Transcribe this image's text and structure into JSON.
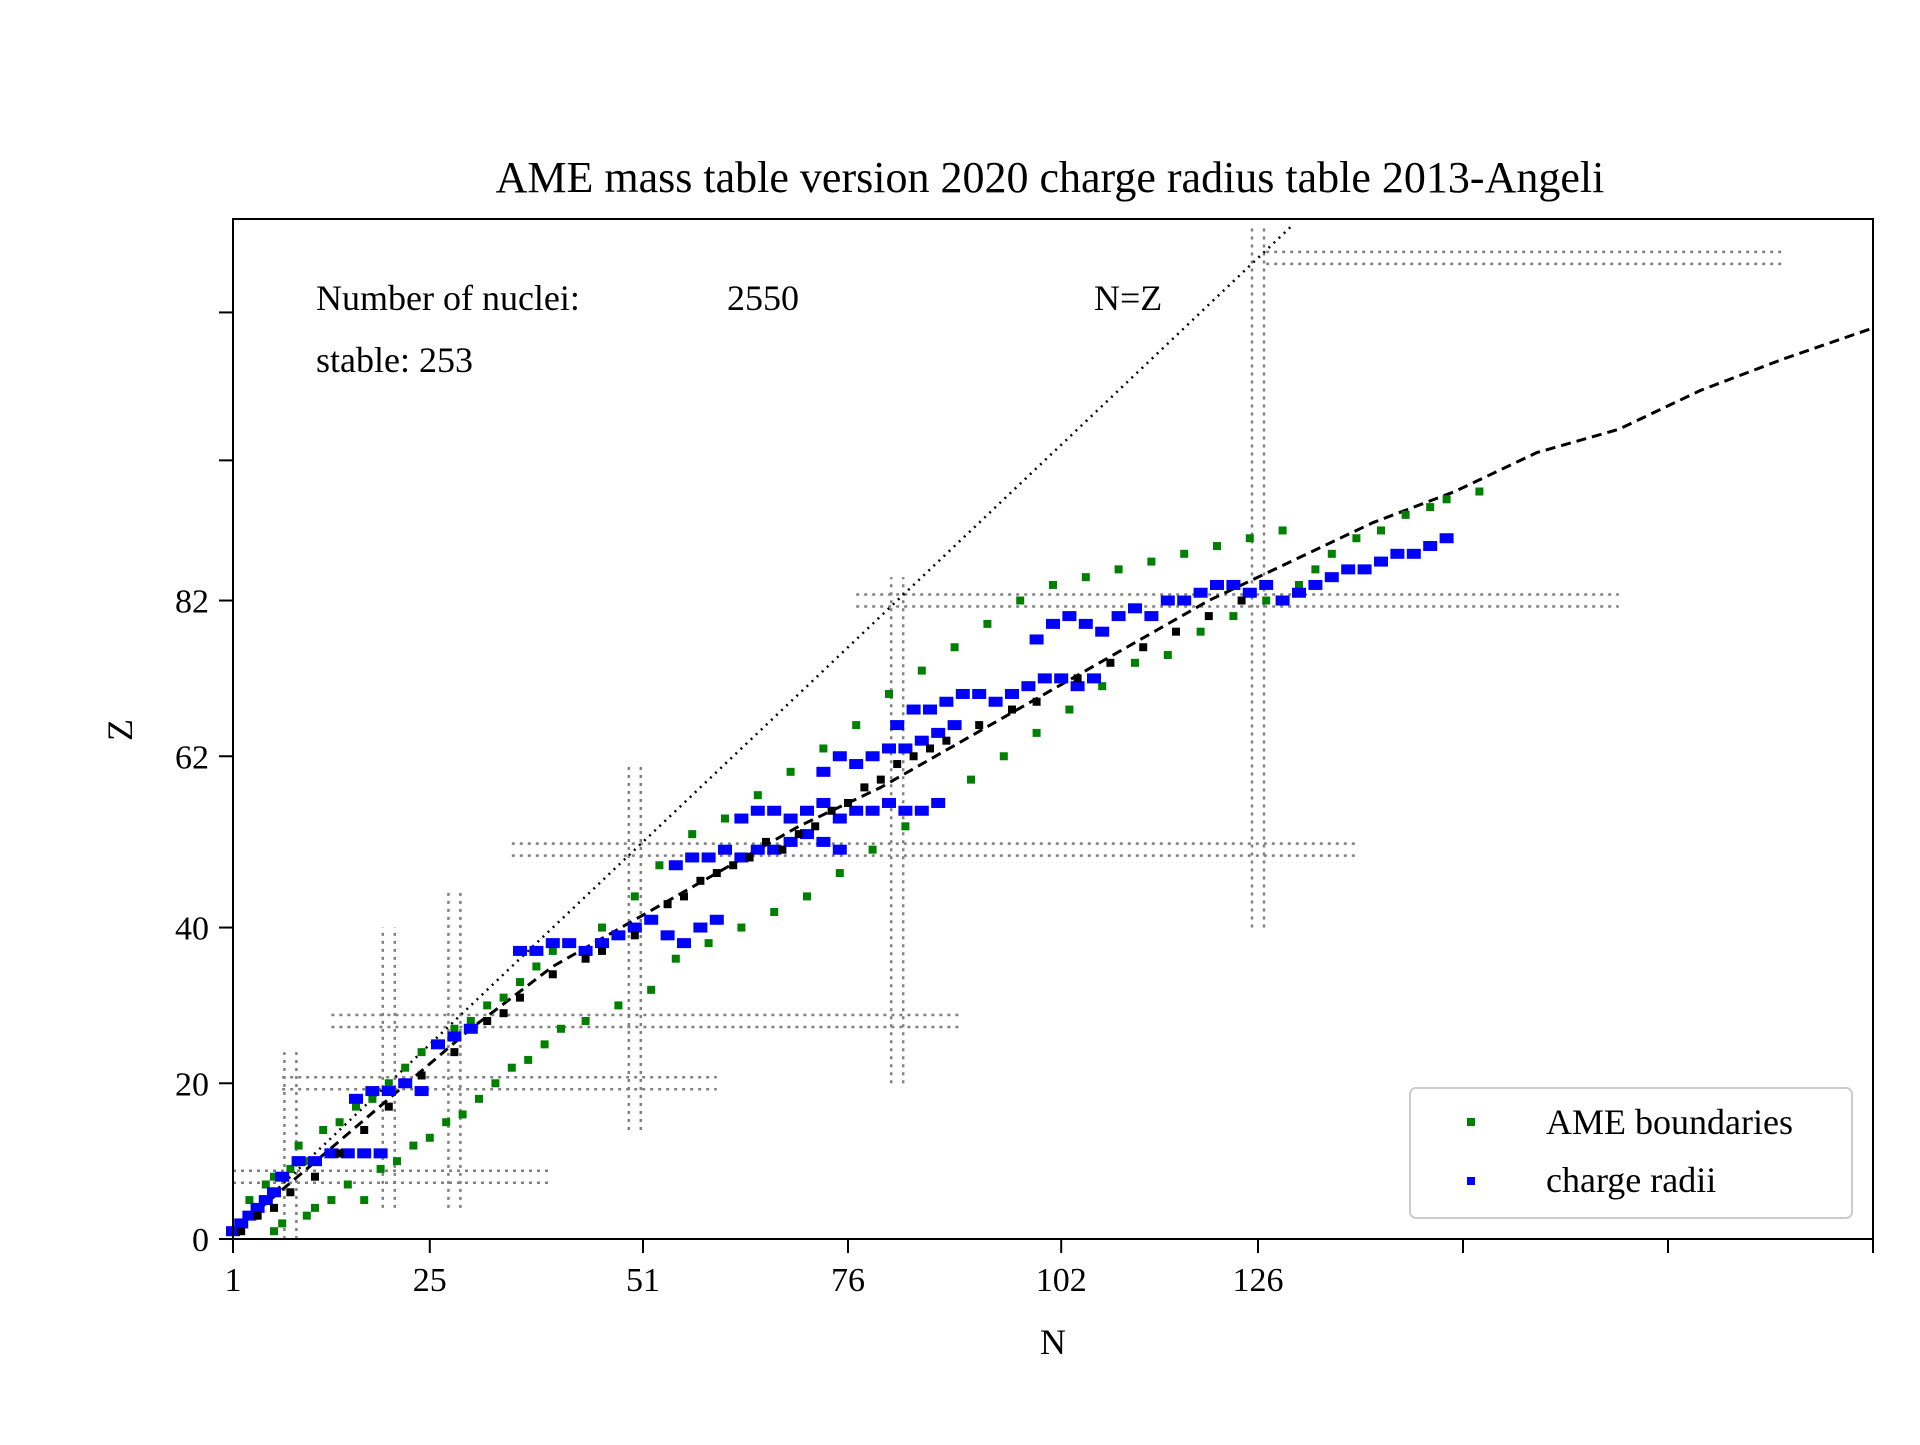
{
  "chart_data": {
    "type": "scatter",
    "title": "AME mass table version 2020 charge radius table 2013-Angeli",
    "xlabel": "N",
    "ylabel": "Z",
    "xlim": [
      1,
      201
    ],
    "ylim": [
      0,
      131
    ],
    "x_ticks": [
      1,
      25,
      51,
      76,
      102,
      126,
      151,
      176,
      201
    ],
    "x_tick_labels": [
      "1",
      "25",
      "51",
      "76",
      "102",
      "126",
      "",
      "",
      ""
    ],
    "y_ticks": [
      0,
      20,
      40,
      62,
      82,
      100,
      119
    ],
    "y_tick_labels": [
      "0",
      "20",
      "40",
      "62",
      "82",
      "",
      ""
    ],
    "grid": false,
    "legend_position": "lower-right",
    "annotations": {
      "nuclei_label": "Number of nuclei:",
      "nuclei_count": "2550",
      "stable": "stable: 253",
      "nz_label": "N=Z"
    },
    "series": [
      {
        "name": "AME boundaries",
        "color": "#008000",
        "marker": "square",
        "points": [
          [
            1,
            1
          ],
          [
            2,
            2
          ],
          [
            3,
            5
          ],
          [
            4,
            3
          ],
          [
            5,
            7
          ],
          [
            6,
            1
          ],
          [
            6,
            8
          ],
          [
            7,
            2
          ],
          [
            8,
            9
          ],
          [
            9,
            12
          ],
          [
            10,
            3
          ],
          [
            10,
            10
          ],
          [
            11,
            4
          ],
          [
            12,
            14
          ],
          [
            13,
            5
          ],
          [
            14,
            15
          ],
          [
            15,
            7
          ],
          [
            16,
            17
          ],
          [
            17,
            5
          ],
          [
            18,
            18
          ],
          [
            19,
            9
          ],
          [
            20,
            20
          ],
          [
            21,
            10
          ],
          [
            22,
            22
          ],
          [
            23,
            12
          ],
          [
            24,
            24
          ],
          [
            25,
            13
          ],
          [
            26,
            25
          ],
          [
            27,
            15
          ],
          [
            28,
            27
          ],
          [
            29,
            16
          ],
          [
            30,
            28
          ],
          [
            31,
            18
          ],
          [
            32,
            30
          ],
          [
            33,
            20
          ],
          [
            34,
            31
          ],
          [
            35,
            22
          ],
          [
            36,
            33
          ],
          [
            37,
            23
          ],
          [
            38,
            35
          ],
          [
            39,
            25
          ],
          [
            40,
            37
          ],
          [
            41,
            27
          ],
          [
            42,
            38
          ],
          [
            44,
            28
          ],
          [
            46,
            40
          ],
          [
            48,
            30
          ],
          [
            50,
            44
          ],
          [
            52,
            32
          ],
          [
            53,
            48
          ],
          [
            55,
            36
          ],
          [
            57,
            52
          ],
          [
            59,
            38
          ],
          [
            61,
            54
          ],
          [
            63,
            40
          ],
          [
            65,
            57
          ],
          [
            67,
            42
          ],
          [
            69,
            60
          ],
          [
            71,
            44
          ],
          [
            73,
            63
          ],
          [
            75,
            47
          ],
          [
            77,
            66
          ],
          [
            79,
            50
          ],
          [
            81,
            70
          ],
          [
            83,
            53
          ],
          [
            85,
            73
          ],
          [
            87,
            56
          ],
          [
            89,
            76
          ],
          [
            91,
            59
          ],
          [
            93,
            79
          ],
          [
            95,
            62
          ],
          [
            97,
            82
          ],
          [
            99,
            65
          ],
          [
            101,
            84
          ],
          [
            103,
            68
          ],
          [
            105,
            85
          ],
          [
            107,
            71
          ],
          [
            109,
            86
          ],
          [
            111,
            74
          ],
          [
            113,
            87
          ],
          [
            115,
            75
          ],
          [
            117,
            88
          ],
          [
            119,
            78
          ],
          [
            121,
            89
          ],
          [
            123,
            80
          ],
          [
            125,
            90
          ],
          [
            127,
            82
          ],
          [
            129,
            91
          ],
          [
            131,
            84
          ],
          [
            133,
            86
          ],
          [
            135,
            88
          ],
          [
            138,
            90
          ],
          [
            141,
            91
          ],
          [
            144,
            93
          ],
          [
            147,
            94
          ],
          [
            149,
            95
          ],
          [
            153,
            96
          ]
        ]
      },
      {
        "name": "charge radii",
        "color": "#0000ff",
        "marker": "square",
        "points": [
          [
            1,
            1
          ],
          [
            2,
            2
          ],
          [
            3,
            3
          ],
          [
            4,
            4
          ],
          [
            5,
            5
          ],
          [
            6,
            6
          ],
          [
            7,
            8
          ],
          [
            9,
            10
          ],
          [
            11,
            10
          ],
          [
            13,
            11
          ],
          [
            15,
            11
          ],
          [
            17,
            11
          ],
          [
            19,
            11
          ],
          [
            16,
            18
          ],
          [
            18,
            19
          ],
          [
            20,
            19
          ],
          [
            22,
            20
          ],
          [
            24,
            19
          ],
          [
            26,
            25
          ],
          [
            28,
            26
          ],
          [
            30,
            27
          ],
          [
            36,
            37
          ],
          [
            38,
            37
          ],
          [
            40,
            38
          ],
          [
            42,
            38
          ],
          [
            44,
            37
          ],
          [
            46,
            38
          ],
          [
            48,
            39
          ],
          [
            50,
            40
          ],
          [
            52,
            41
          ],
          [
            54,
            39
          ],
          [
            56,
            38
          ],
          [
            58,
            40
          ],
          [
            60,
            41
          ],
          [
            55,
            48
          ],
          [
            57,
            49
          ],
          [
            59,
            49
          ],
          [
            61,
            50
          ],
          [
            63,
            49
          ],
          [
            65,
            50
          ],
          [
            67,
            50
          ],
          [
            69,
            51
          ],
          [
            71,
            52
          ],
          [
            73,
            51
          ],
          [
            75,
            50
          ],
          [
            63,
            54
          ],
          [
            65,
            55
          ],
          [
            67,
            55
          ],
          [
            69,
            54
          ],
          [
            71,
            55
          ],
          [
            73,
            56
          ],
          [
            75,
            54
          ],
          [
            77,
            55
          ],
          [
            79,
            55
          ],
          [
            81,
            56
          ],
          [
            83,
            55
          ],
          [
            85,
            55
          ],
          [
            87,
            56
          ],
          [
            73,
            60
          ],
          [
            75,
            62
          ],
          [
            77,
            61
          ],
          [
            79,
            62
          ],
          [
            81,
            63
          ],
          [
            83,
            63
          ],
          [
            85,
            64
          ],
          [
            87,
            65
          ],
          [
            89,
            66
          ],
          [
            82,
            66
          ],
          [
            84,
            68
          ],
          [
            86,
            68
          ],
          [
            88,
            69
          ],
          [
            90,
            70
          ],
          [
            92,
            70
          ],
          [
            94,
            69
          ],
          [
            96,
            70
          ],
          [
            98,
            71
          ],
          [
            100,
            72
          ],
          [
            102,
            72
          ],
          [
            104,
            71
          ],
          [
            106,
            72
          ],
          [
            99,
            77
          ],
          [
            101,
            79
          ],
          [
            103,
            80
          ],
          [
            105,
            79
          ],
          [
            107,
            78
          ],
          [
            109,
            80
          ],
          [
            111,
            81
          ],
          [
            113,
            80
          ],
          [
            115,
            82
          ],
          [
            117,
            82
          ],
          [
            119,
            83
          ],
          [
            121,
            84
          ],
          [
            123,
            84
          ],
          [
            125,
            83
          ],
          [
            127,
            84
          ],
          [
            129,
            82
          ],
          [
            131,
            83
          ],
          [
            133,
            84
          ],
          [
            135,
            85
          ],
          [
            137,
            86
          ],
          [
            139,
            86
          ],
          [
            141,
            87
          ],
          [
            143,
            88
          ],
          [
            145,
            88
          ],
          [
            147,
            89
          ],
          [
            149,
            90
          ]
        ]
      },
      {
        "name": "",
        "color": "#000000",
        "marker": "square",
        "points": [
          [
            2,
            1
          ],
          [
            4,
            3
          ],
          [
            6,
            4
          ],
          [
            8,
            6
          ],
          [
            11,
            8
          ],
          [
            14,
            11
          ],
          [
            17,
            14
          ],
          [
            20,
            17
          ],
          [
            24,
            21
          ],
          [
            28,
            24
          ],
          [
            32,
            28
          ],
          [
            34,
            29
          ],
          [
            36,
            31
          ],
          [
            40,
            34
          ],
          [
            44,
            36
          ],
          [
            46,
            37
          ],
          [
            50,
            39
          ],
          [
            54,
            43
          ],
          [
            56,
            44
          ],
          [
            58,
            46
          ],
          [
            60,
            47
          ],
          [
            62,
            48
          ],
          [
            64,
            49
          ],
          [
            66,
            51
          ],
          [
            68,
            50
          ],
          [
            70,
            52
          ],
          [
            72,
            53
          ],
          [
            74,
            55
          ],
          [
            76,
            56
          ],
          [
            78,
            58
          ],
          [
            80,
            59
          ],
          [
            82,
            61
          ],
          [
            84,
            62
          ],
          [
            86,
            63
          ],
          [
            88,
            64
          ],
          [
            92,
            66
          ],
          [
            96,
            68
          ],
          [
            99,
            69
          ],
          [
            104,
            72
          ],
          [
            108,
            74
          ],
          [
            112,
            76
          ],
          [
            116,
            78
          ],
          [
            120,
            80
          ],
          [
            124,
            82
          ]
        ]
      }
    ],
    "reference_lines": {
      "nz_line": [
        [
          1,
          1
        ],
        [
          130,
          130
        ]
      ],
      "stability_line": [
        [
          1,
          1
        ],
        [
          10,
          9
        ],
        [
          20,
          18
        ],
        [
          30,
          27
        ],
        [
          40,
          35
        ],
        [
          50,
          41
        ],
        [
          60,
          47
        ],
        [
          70,
          53
        ],
        [
          80,
          58
        ],
        [
          90,
          64
        ],
        [
          100,
          70
        ],
        [
          110,
          76
        ],
        [
          120,
          82
        ],
        [
          130,
          87
        ],
        [
          140,
          92
        ],
        [
          150,
          96
        ],
        [
          160,
          101
        ],
        [
          170,
          104
        ],
        [
          180,
          109
        ],
        [
          190,
          113
        ],
        [
          201,
          117
        ]
      ]
    },
    "magic_lines": {
      "vertical": [
        [
          8,
          0,
          24
        ],
        [
          20,
          4,
          40
        ],
        [
          28,
          4,
          45
        ],
        [
          50,
          14,
          61
        ],
        [
          82,
          20,
          85
        ],
        [
          126,
          40,
          130
        ]
      ],
      "horizontal": [
        [
          8,
          1,
          40
        ],
        [
          20,
          7,
          60
        ],
        [
          28,
          13,
          90
        ],
        [
          50,
          35,
          138
        ],
        [
          82,
          77,
          170
        ],
        [
          126,
          127,
          190
        ]
      ]
    }
  }
}
